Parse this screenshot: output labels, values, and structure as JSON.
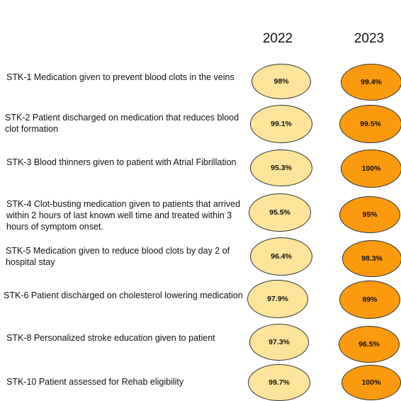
{
  "header": {
    "year_1": "2022",
    "year_2": "2023"
  },
  "colors": {
    "oval_2022": "#fde49a",
    "oval_2023": "#fb9a0f"
  },
  "measures": [
    {
      "label": "STK-1 Medication given to prevent blood clots in the veins",
      "v2022": "98%",
      "v2023": "99.4%"
    },
    {
      "label": "STK-2 Patient discharged on medication that reduces blood clot formation",
      "v2022": "99.1%",
      "v2023": "99.5%"
    },
    {
      "label": "STK-3 Blood thinners given to patient with Atrial Fibrillation",
      "v2022": "95.3%",
      "v2023": "100%"
    },
    {
      "label": "STK-4 Clot-busting medication given to patients that arrived within 2 hours of last known well time and treated within 3 hours of symptom onset.",
      "v2022": "95.5%",
      "v2023": "95%"
    },
    {
      "label": "STK-5 Medication given to reduce blood clots by day 2 of hospital stay",
      "v2022": "96.4%",
      "v2023": "98.3%"
    },
    {
      "label": "STK-6 Patient discharged on cholesterol lowering medication",
      "v2022": "97.9%",
      "v2023": "99%"
    },
    {
      "label": "STK-8 Personalized stroke education given to patient",
      "v2022": "97.3%",
      "v2023": "96.5%"
    },
    {
      "label": "STK-10 Patient assessed for Rehab eligibility",
      "v2022": "99.7%",
      "v2023": "100%"
    }
  ]
}
